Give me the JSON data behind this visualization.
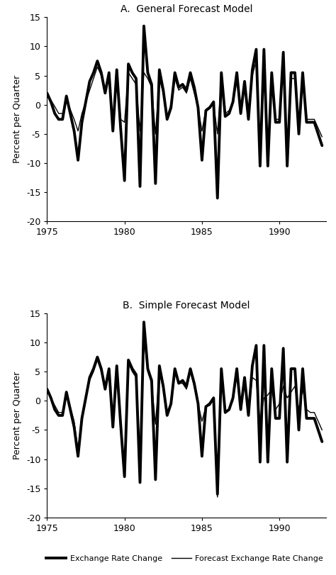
{
  "title_a": "A.  General Forecast Model",
  "title_b": "B.  Simple Forecast Model",
  "ylabel": "Percent per Quarter",
  "xlim": [
    1975.0,
    1993.0
  ],
  "ylim": [
    -20,
    15
  ],
  "yticks": [
    -20,
    -15,
    -10,
    -5,
    0,
    5,
    10,
    15
  ],
  "xticks": [
    1975,
    1980,
    1985,
    1990
  ],
  "legend_actual": "Exchange Rate Change",
  "legend_forecast": "Forecast Exchange Rate Change",
  "actual_color": "#000000",
  "forecast_color": "#000000",
  "actual_lw": 2.8,
  "forecast_lw": 1.0,
  "quarters": [
    1975.0,
    1975.25,
    1975.5,
    1975.75,
    1976.0,
    1976.25,
    1976.5,
    1976.75,
    1977.0,
    1977.25,
    1977.5,
    1977.75,
    1978.0,
    1978.25,
    1978.5,
    1978.75,
    1979.0,
    1979.25,
    1979.5,
    1979.75,
    1980.0,
    1980.25,
    1980.5,
    1980.75,
    1981.0,
    1981.25,
    1981.5,
    1981.75,
    1982.0,
    1982.25,
    1982.5,
    1982.75,
    1983.0,
    1983.25,
    1983.5,
    1983.75,
    1984.0,
    1984.25,
    1984.5,
    1984.75,
    1985.0,
    1985.25,
    1985.5,
    1985.75,
    1986.0,
    1986.25,
    1986.5,
    1986.75,
    1987.0,
    1987.25,
    1987.5,
    1987.75,
    1988.0,
    1988.25,
    1988.5,
    1988.75,
    1989.0,
    1989.25,
    1989.5,
    1989.75,
    1990.0,
    1990.25,
    1990.5,
    1990.75,
    1991.0,
    1991.25,
    1991.5,
    1991.75,
    1992.0,
    1992.25,
    1992.5,
    1992.75
  ],
  "actual": [
    2.0,
    0.5,
    -1.5,
    -2.5,
    -2.5,
    1.5,
    -1.5,
    -4.5,
    -9.5,
    -3.0,
    0.5,
    4.0,
    5.5,
    7.5,
    5.5,
    2.0,
    5.5,
    -4.5,
    6.0,
    -4.0,
    -13.0,
    7.0,
    5.5,
    4.5,
    -14.0,
    13.5,
    5.5,
    3.5,
    -13.5,
    6.0,
    2.5,
    -2.5,
    -0.5,
    5.5,
    3.0,
    3.5,
    2.5,
    5.5,
    3.0,
    -0.5,
    -9.5,
    -1.0,
    -0.5,
    0.5,
    -16.0,
    5.5,
    -2.0,
    -1.5,
    0.5,
    5.5,
    -1.5,
    4.0,
    -2.5,
    6.0,
    9.5,
    -10.5,
    9.5,
    -10.5,
    5.5,
    -3.0,
    -3.0,
    9.0,
    -10.5,
    5.5,
    5.5,
    -5.0,
    5.5,
    -3.0,
    -3.0,
    -3.0,
    -5.0,
    -7.0
  ],
  "general_forecast": [
    1.5,
    0.8,
    -0.3,
    -1.5,
    -1.5,
    0.8,
    -0.8,
    -2.5,
    -4.5,
    -1.5,
    0.5,
    2.5,
    4.5,
    6.5,
    5.0,
    2.5,
    4.5,
    -2.5,
    5.0,
    -2.5,
    -3.0,
    5.5,
    4.5,
    3.5,
    -4.5,
    5.5,
    4.5,
    3.0,
    -5.0,
    4.5,
    2.0,
    -2.0,
    0.0,
    4.5,
    2.5,
    3.0,
    2.0,
    4.5,
    2.0,
    -0.5,
    -4.5,
    -0.8,
    -0.3,
    0.2,
    -5.0,
    4.5,
    -1.5,
    -1.0,
    0.5,
    4.0,
    -1.0,
    3.0,
    -2.0,
    5.0,
    7.5,
    -8.5,
    7.5,
    -8.0,
    4.5,
    -2.5,
    -2.5,
    7.5,
    -8.5,
    4.5,
    4.5,
    -4.0,
    4.5,
    -2.5,
    -2.5,
    -2.5,
    -4.0,
    -5.5
  ],
  "simple_forecast": [
    1.8,
    0.5,
    -0.8,
    -2.0,
    -2.0,
    1.0,
    -1.0,
    -3.5,
    -8.5,
    -2.5,
    0.5,
    3.5,
    5.0,
    7.0,
    5.0,
    2.0,
    5.0,
    -3.5,
    5.5,
    -3.0,
    -12.5,
    6.5,
    5.0,
    4.0,
    -9.5,
    11.0,
    5.0,
    3.0,
    -4.0,
    5.0,
    2.0,
    -2.0,
    -0.5,
    5.0,
    3.0,
    3.0,
    2.0,
    5.0,
    2.5,
    -0.5,
    -3.5,
    -1.0,
    -0.8,
    0.2,
    -16.5,
    4.0,
    -2.0,
    -1.5,
    0.0,
    4.5,
    -1.0,
    3.0,
    -2.0,
    4.0,
    3.5,
    -3.5,
    0.5,
    1.0,
    2.0,
    -1.5,
    -0.5,
    2.5,
    0.5,
    1.5,
    2.5,
    -1.5,
    2.0,
    -1.5,
    -2.0,
    -2.0,
    -3.5,
    -5.0
  ]
}
